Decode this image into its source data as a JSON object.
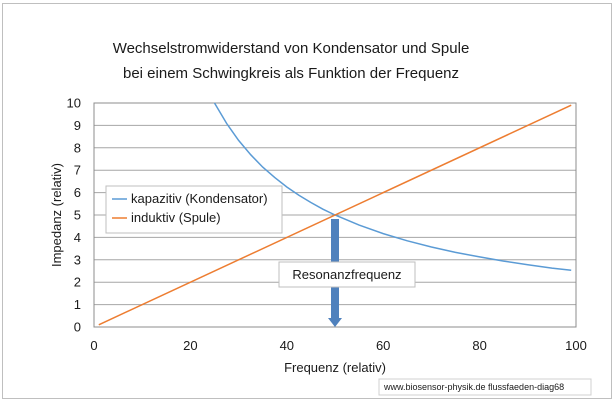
{
  "chart_data": {
    "type": "line",
    "title": [
      "Wechselstromwiderstand von Kondensator  und Spule",
      "bei einem Schwingkreis als Funktion der Frequenz"
    ],
    "xlabel": "Frequenz (relativ)",
    "ylabel": "Impedanz (relativ)",
    "xlim": [
      0,
      100
    ],
    "ylim": [
      0,
      10
    ],
    "xticks": [
      0,
      20,
      40,
      60,
      80,
      100
    ],
    "yticks": [
      0,
      1,
      2,
      3,
      4,
      5,
      6,
      7,
      8,
      9,
      10
    ],
    "grid": "horizontal",
    "legend_position": "left-middle",
    "series": [
      {
        "name": "kapazitiv (Kondensator)",
        "color": "#5B9BD5",
        "x": [
          25,
          27.5,
          30,
          32.5,
          35,
          37.5,
          40,
          42.5,
          45,
          47.5,
          50,
          55,
          60,
          65,
          70,
          75,
          80,
          85,
          90,
          95,
          99
        ],
        "y": [
          10,
          9.09,
          8.33,
          7.69,
          7.14,
          6.67,
          6.25,
          5.88,
          5.56,
          5.26,
          5,
          4.55,
          4.17,
          3.85,
          3.57,
          3.33,
          3.13,
          2.94,
          2.78,
          2.63,
          2.53
        ]
      },
      {
        "name": "induktiv (Spule)",
        "color": "#ED7D31",
        "x": [
          1,
          99
        ],
        "y": [
          0.1,
          9.9
        ]
      }
    ],
    "annotation": {
      "label": "Resonanzfrequenz",
      "x": 50,
      "y_top": 5,
      "y_bottom": 0,
      "color": "#4F81BD"
    },
    "credit": "www.biosensor-physik.de  flussfaeden-diag68"
  }
}
